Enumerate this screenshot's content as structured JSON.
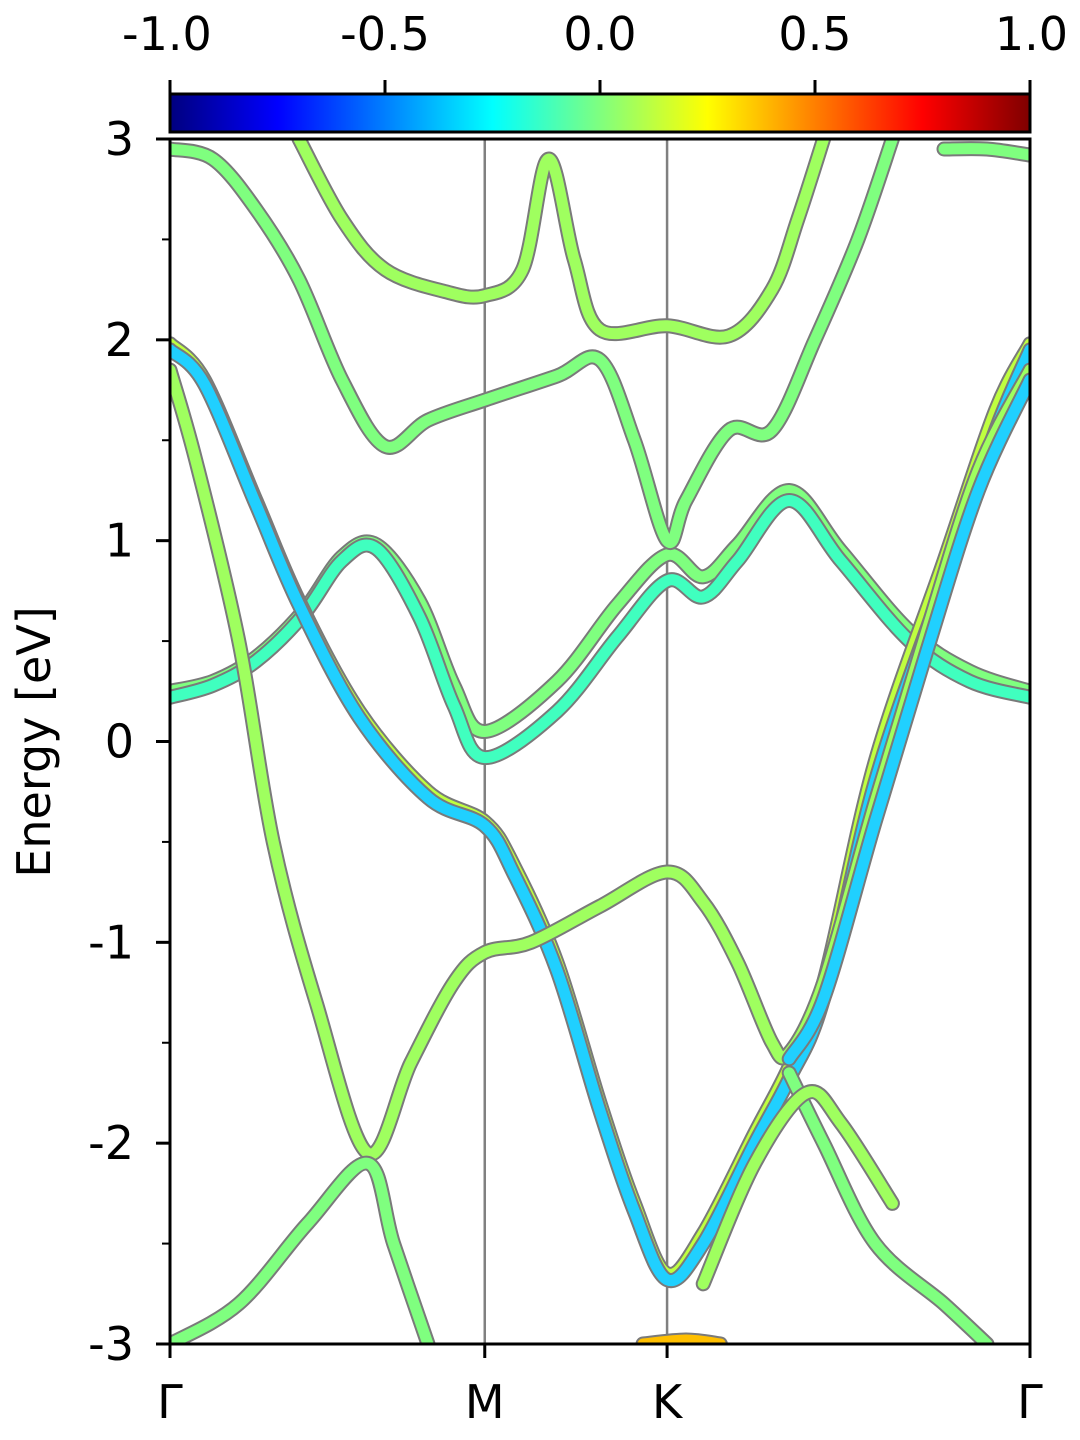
{
  "chart_data": {
    "type": "line",
    "ylabel": "Energy [eV]",
    "xlabel": "",
    "ylim": [
      -3,
      3
    ],
    "xlim": [
      0,
      1
    ],
    "yticks": [
      {
        "value": 3,
        "label": "3"
      },
      {
        "value": 2,
        "label": "2"
      },
      {
        "value": 1,
        "label": "1"
      },
      {
        "value": 0,
        "label": "0"
      },
      {
        "value": -1,
        "label": "-1"
      },
      {
        "value": -2,
        "label": "-2"
      },
      {
        "value": -3,
        "label": "-3"
      }
    ],
    "yminor": [
      2.5,
      1.5,
      0.5,
      -0.5,
      -1.5,
      -2.5
    ],
    "kpoints": [
      {
        "label": "Γ",
        "x": 0
      },
      {
        "label": "M",
        "x": 0.366
      },
      {
        "label": "K",
        "x": 0.578
      },
      {
        "label": "Γ",
        "x": 1
      }
    ],
    "colorbar": {
      "range": [
        -1,
        1
      ],
      "ticks": [
        {
          "value": -1.0,
          "label": "-1.0"
        },
        {
          "value": -0.5,
          "label": "-0.5"
        },
        {
          "value": 0.0,
          "label": "0.0"
        },
        {
          "value": 0.5,
          "label": "0.5"
        },
        {
          "value": 1.0,
          "label": "1.0"
        }
      ],
      "colormap": "jet",
      "stops": [
        "#00007f",
        "#0000ff",
        "#007fff",
        "#00ffff",
        "#7fff7f",
        "#ffff00",
        "#ff7f00",
        "#ff0000",
        "#7f0000"
      ]
    },
    "series": [
      {
        "color": "#7fff7f",
        "points": [
          [
            0,
            0.25
          ],
          [
            0.05,
            0.3
          ],
          [
            0.1,
            0.42
          ],
          [
            0.155,
            0.65
          ],
          [
            0.2,
            0.92
          ],
          [
            0.24,
            0.98
          ],
          [
            0.29,
            0.7
          ],
          [
            0.33,
            0.28
          ],
          [
            0.366,
            0.05
          ],
          [
            0.45,
            0.3
          ],
          [
            0.52,
            0.68
          ],
          [
            0.578,
            0.93
          ],
          [
            0.62,
            0.82
          ],
          [
            0.66,
            0.98
          ],
          [
            0.72,
            1.25
          ],
          [
            0.78,
            0.95
          ],
          [
            0.86,
            0.55
          ],
          [
            0.93,
            0.35
          ],
          [
            1,
            0.25
          ]
        ]
      },
      {
        "color": "#40ffbf",
        "points": [
          [
            0,
            0.22
          ],
          [
            0.05,
            0.28
          ],
          [
            0.1,
            0.4
          ],
          [
            0.155,
            0.63
          ],
          [
            0.2,
            0.9
          ],
          [
            0.24,
            0.96
          ],
          [
            0.29,
            0.62
          ],
          [
            0.33,
            0.18
          ],
          [
            0.366,
            -0.08
          ],
          [
            0.45,
            0.15
          ],
          [
            0.52,
            0.52
          ],
          [
            0.578,
            0.8
          ],
          [
            0.62,
            0.72
          ],
          [
            0.66,
            0.9
          ],
          [
            0.72,
            1.2
          ],
          [
            0.78,
            0.9
          ],
          [
            0.86,
            0.5
          ],
          [
            0.93,
            0.3
          ],
          [
            1,
            0.22
          ]
        ]
      },
      {
        "color": "#7fff7f",
        "points": [
          [
            0,
            2.95
          ],
          [
            0.05,
            2.9
          ],
          [
            0.1,
            2.65
          ],
          [
            0.15,
            2.3
          ],
          [
            0.2,
            1.8
          ],
          [
            0.25,
            1.47
          ],
          [
            0.3,
            1.6
          ],
          [
            0.366,
            1.7
          ],
          [
            0.45,
            1.82
          ],
          [
            0.5,
            1.9
          ],
          [
            0.54,
            1.5
          ],
          [
            0.578,
            1.0
          ],
          [
            0.6,
            1.2
          ],
          [
            0.65,
            1.55
          ],
          [
            0.7,
            1.55
          ],
          [
            0.75,
            2.0
          ],
          [
            0.8,
            2.5
          ],
          [
            0.84,
            3.0
          ]
        ]
      },
      {
        "color": "#9fff5f",
        "points": [
          [
            0.15,
            3.0
          ],
          [
            0.2,
            2.6
          ],
          [
            0.25,
            2.35
          ],
          [
            0.32,
            2.24
          ],
          [
            0.366,
            2.22
          ],
          [
            0.41,
            2.35
          ],
          [
            0.44,
            2.9
          ],
          [
            0.47,
            2.4
          ],
          [
            0.5,
            2.05
          ],
          [
            0.578,
            2.07
          ],
          [
            0.65,
            2.02
          ],
          [
            0.7,
            2.25
          ],
          [
            0.73,
            2.6
          ],
          [
            0.76,
            3.0
          ]
        ]
      },
      {
        "color": "#bfff3f",
        "points": [
          [
            0,
            1.98
          ],
          [
            0.04,
            1.8
          ],
          [
            0.1,
            1.2
          ],
          [
            0.15,
            0.7
          ],
          [
            0.22,
            0.15
          ],
          [
            0.3,
            -0.25
          ],
          [
            0.366,
            -0.4
          ],
          [
            0.4,
            -0.62
          ],
          [
            0.45,
            -1.1
          ],
          [
            0.5,
            -1.8
          ],
          [
            0.54,
            -2.3
          ],
          [
            0.578,
            -2.65
          ],
          [
            0.62,
            -2.45
          ],
          [
            0.68,
            -1.95
          ],
          [
            0.72,
            -1.62
          ],
          [
            0.76,
            -1.2
          ],
          [
            0.82,
            -0.1
          ],
          [
            0.9,
            0.9
          ],
          [
            0.96,
            1.65
          ],
          [
            1,
            1.98
          ]
        ]
      },
      {
        "color": "#20d0ff",
        "points": [
          [
            0,
            1.95
          ],
          [
            0.04,
            1.78
          ],
          [
            0.1,
            1.18
          ],
          [
            0.15,
            0.68
          ],
          [
            0.22,
            0.12
          ],
          [
            0.3,
            -0.28
          ],
          [
            0.366,
            -0.42
          ],
          [
            0.4,
            -0.66
          ],
          [
            0.45,
            -1.14
          ],
          [
            0.5,
            -1.84
          ],
          [
            0.54,
            -2.34
          ],
          [
            0.578,
            -2.68
          ],
          [
            0.62,
            -2.5
          ],
          [
            0.68,
            -2.0
          ],
          [
            0.72,
            -1.68
          ],
          [
            0.76,
            -1.28
          ],
          [
            0.82,
            -0.2
          ],
          [
            0.9,
            0.8
          ],
          [
            0.96,
            1.55
          ],
          [
            1,
            1.95
          ]
        ]
      },
      {
        "color": "#9fff5f",
        "points": [
          [
            0,
            1.85
          ],
          [
            0.03,
            1.4
          ],
          [
            0.08,
            0.5
          ],
          [
            0.12,
            -0.5
          ],
          [
            0.17,
            -1.3
          ],
          [
            0.23,
            -2.05
          ],
          [
            0.28,
            -1.6
          ],
          [
            0.33,
            -1.2
          ],
          [
            0.366,
            -1.05
          ],
          [
            0.42,
            -1.0
          ],
          [
            0.5,
            -0.82
          ],
          [
            0.578,
            -0.65
          ],
          [
            0.62,
            -0.8
          ],
          [
            0.66,
            -1.1
          ],
          [
            0.7,
            -1.5
          ],
          [
            0.72,
            -1.55
          ],
          [
            0.76,
            -1.2
          ],
          [
            0.82,
            -0.3
          ],
          [
            0.88,
            0.55
          ],
          [
            0.94,
            1.35
          ],
          [
            1,
            1.85
          ]
        ]
      },
      {
        "color": "#20d0ff",
        "points": [
          [
            0.72,
            -1.58
          ],
          [
            0.76,
            -1.28
          ],
          [
            0.82,
            -0.4
          ],
          [
            0.88,
            0.45
          ],
          [
            0.94,
            1.25
          ],
          [
            1,
            1.8
          ]
        ]
      },
      {
        "color": "#7fff7f",
        "points": [
          [
            0,
            -3.0
          ],
          [
            0.08,
            -2.8
          ],
          [
            0.16,
            -2.4
          ],
          [
            0.23,
            -2.1
          ],
          [
            0.26,
            -2.5
          ],
          [
            0.3,
            -3.0
          ]
        ]
      },
      {
        "color": "#7fff7f",
        "points": [
          [
            0.72,
            -1.65
          ],
          [
            0.76,
            -2.0
          ],
          [
            0.82,
            -2.5
          ],
          [
            0.9,
            -2.8
          ],
          [
            0.95,
            -3.0
          ]
        ]
      },
      {
        "color": "#9fff5f",
        "points": [
          [
            0.62,
            -2.7
          ],
          [
            0.68,
            -2.1
          ],
          [
            0.74,
            -1.75
          ],
          [
            0.78,
            -1.9
          ],
          [
            0.84,
            -2.3
          ]
        ]
      },
      {
        "color": "#ffbf00",
        "points": [
          [
            0.55,
            -3.0
          ],
          [
            0.6,
            -2.98
          ],
          [
            0.64,
            -3.0
          ]
        ]
      },
      {
        "color": "#7fff7f",
        "points": [
          [
            0.9,
            2.95
          ],
          [
            0.95,
            2.95
          ],
          [
            1,
            2.92
          ]
        ]
      }
    ]
  }
}
